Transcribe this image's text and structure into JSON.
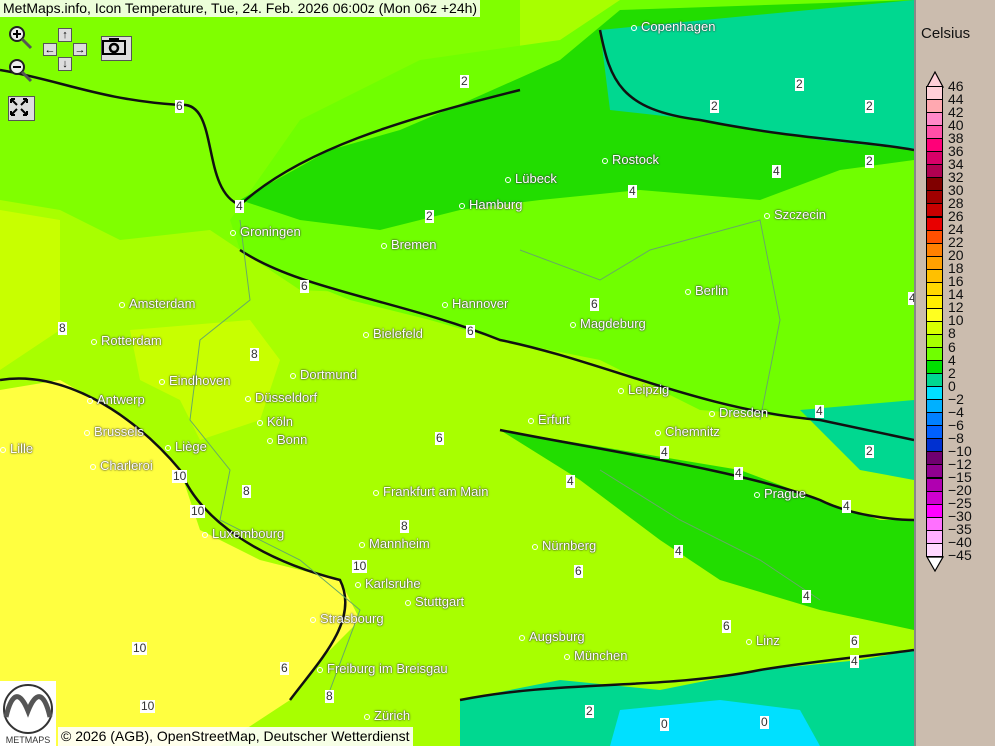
{
  "title": "MetMaps.info, Icon Temperature, Tue, 24. Feb. 2026 06:00z (Mon 06z +24h)",
  "attribution": "© 2026 (AGB), OpenStreetMap, Deutscher Wetterdienst",
  "logo_text": "METMAPS",
  "controls": {
    "zoom_in": "zoom-in-icon",
    "zoom_out": "zoom-out-icon",
    "pan_up": "↑",
    "pan_down": "↓",
    "pan_left": "←",
    "pan_right": "→",
    "screenshot": "camera-icon",
    "fullscreen": "fullscreen-icon"
  },
  "cities": [
    {
      "name": "Copenhagen"
    },
    {
      "name": "Rostock"
    },
    {
      "name": "Lübeck"
    },
    {
      "name": "Hamburg"
    },
    {
      "name": "Szczecin"
    },
    {
      "name": "Groningen"
    },
    {
      "name": "Bremen"
    },
    {
      "name": "Berlin"
    },
    {
      "name": "Amsterdam"
    },
    {
      "name": "Hannover"
    },
    {
      "name": "Magdeburg"
    },
    {
      "name": "Bielefeld"
    },
    {
      "name": "Rotterdam"
    },
    {
      "name": "Dortmund"
    },
    {
      "name": "Eindhoven"
    },
    {
      "name": "Leipzig"
    },
    {
      "name": "Antwerp"
    },
    {
      "name": "Düsseldorf"
    },
    {
      "name": "Dresden"
    },
    {
      "name": "Erfurt"
    },
    {
      "name": "Köln"
    },
    {
      "name": "Brussels"
    },
    {
      "name": "Chemnitz"
    },
    {
      "name": "Bonn"
    },
    {
      "name": "Lille"
    },
    {
      "name": "Liège"
    },
    {
      "name": "Charleroi"
    },
    {
      "name": "Prague"
    },
    {
      "name": "Frankfurt am Main"
    },
    {
      "name": "Luxembourg"
    },
    {
      "name": "Mannheim"
    },
    {
      "name": "Nürnberg"
    },
    {
      "name": "Karlsruhe"
    },
    {
      "name": "Stuttgart"
    },
    {
      "name": "Strasbourg"
    },
    {
      "name": "Augsburg"
    },
    {
      "name": "Linz"
    },
    {
      "name": "München"
    },
    {
      "name": "Freiburg im Breisgau"
    },
    {
      "name": "Zürich"
    }
  ],
  "contour_labels": [
    "6",
    "2",
    "2",
    "2",
    "2",
    "2",
    "4",
    "4",
    "2",
    "4",
    "6",
    "8",
    "6",
    "6",
    "8",
    "10",
    "6",
    "4",
    "4",
    "4",
    "2",
    "10",
    "8",
    "4",
    "4",
    "10",
    "6",
    "4",
    "6",
    "10",
    "6",
    "4",
    "8",
    "8",
    "6",
    "4",
    "2",
    "0",
    "0",
    "10",
    "4"
  ],
  "legend": {
    "unit": "Celsius",
    "labels": [
      "46",
      "44",
      "42",
      "40",
      "38",
      "36",
      "34",
      "32",
      "30",
      "28",
      "26",
      "24",
      "22",
      "20",
      "18",
      "16",
      "14",
      "12",
      "10",
      "8",
      "6",
      "4",
      "2",
      "0",
      "−2",
      "−4",
      "−6",
      "−8",
      "−10",
      "−12",
      "−15",
      "−20",
      "−25",
      "−30",
      "−35",
      "−40",
      "−45"
    ],
    "colors": [
      "#ffd0d8",
      "#ffa8b0",
      "#ff88c8",
      "#ff50a8",
      "#ff0078",
      "#d80068",
      "#b00050",
      "#800000",
      "#a00000",
      "#c80000",
      "#e80000",
      "#ff5000",
      "#ff8000",
      "#ffa000",
      "#ffc000",
      "#ffd800",
      "#ffee00",
      "#ffff20",
      "#d8ff00",
      "#a8ff00",
      "#70ff00",
      "#00e000",
      "#00d890",
      "#00e0ff",
      "#00b0ff",
      "#0080ff",
      "#0060ff",
      "#0030d0",
      "#700070",
      "#900090",
      "#b000b0",
      "#d000d0",
      "#ff00ff",
      "#ff70ff",
      "#ffb0ff",
      "#ffd8ff"
    ],
    "top_arrow_color": "#ffd0d8",
    "bottom_arrow_color": "#ffffff"
  }
}
